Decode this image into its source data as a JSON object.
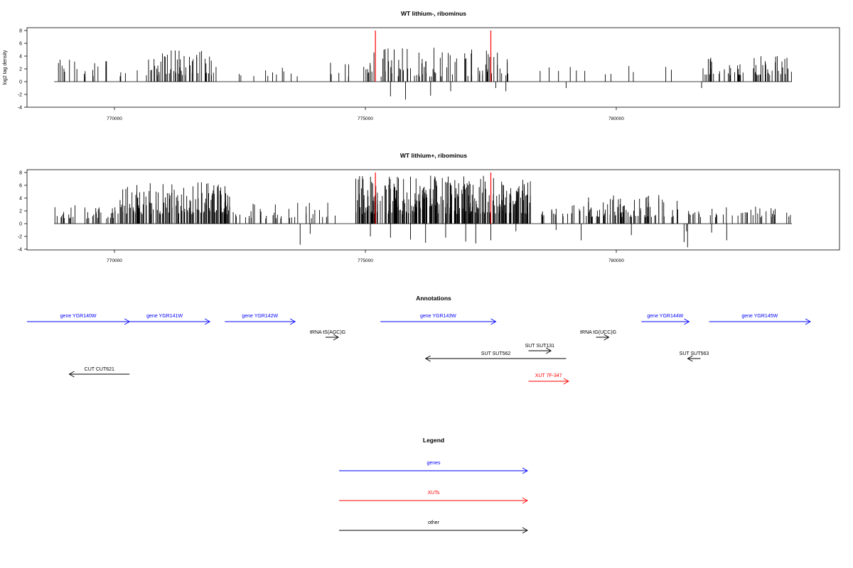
{
  "colors": {
    "gene": "#0000ff",
    "xut": "#ff0000",
    "other": "#000000",
    "marker": "#ff0000"
  },
  "chart_data": [
    {
      "type": "bar",
      "title": "WT lithium-, ribominus",
      "ylabel": "log2 tag density",
      "xlim": [
        767800,
        783700
      ],
      "ylim": [
        -4,
        8
      ],
      "yticks": [
        -4,
        -2,
        0,
        2,
        4,
        6,
        8
      ],
      "xticks": [
        770000,
        775000,
        780000
      ],
      "xtick_labels": [
        "770000",
        "775000",
        "780000"
      ],
      "markers": [
        775200,
        777500
      ],
      "seed": 7,
      "segments": [
        {
          "start": 768800,
          "end": 770500,
          "n": 22,
          "min": 0.8,
          "max": 3.5
        },
        {
          "start": 770600,
          "end": 772000,
          "n": 55,
          "min": 1.0,
          "max": 4.9
        },
        {
          "start": 772000,
          "end": 773800,
          "n": 12,
          "min": 0.8,
          "max": 3.0
        },
        {
          "start": 774300,
          "end": 775000,
          "n": 7,
          "min": 0.8,
          "max": 3.0
        },
        {
          "start": 775000,
          "end": 777900,
          "n": 90,
          "min": 0.8,
          "max": 5.5
        },
        {
          "start": 778300,
          "end": 779900,
          "n": 8,
          "min": 1.0,
          "max": 3.2
        },
        {
          "start": 780100,
          "end": 781300,
          "n": 4,
          "min": 1.5,
          "max": 3.5
        },
        {
          "start": 781700,
          "end": 783500,
          "n": 60,
          "min": 1.0,
          "max": 4.0
        }
      ],
      "negatives": [
        {
          "x": 775500,
          "y": -2.3
        },
        {
          "x": 775800,
          "y": -2.8
        },
        {
          "x": 776300,
          "y": -2.2
        },
        {
          "x": 776700,
          "y": -1.5
        },
        {
          "x": 777600,
          "y": -1.0
        },
        {
          "x": 777800,
          "y": -1.5
        },
        {
          "x": 779000,
          "y": -1.0
        },
        {
          "x": 781700,
          "y": -1.0
        }
      ]
    },
    {
      "type": "bar",
      "title": "WT lithium+, ribominus",
      "ylabel": "",
      "xlim": [
        767800,
        783700
      ],
      "ylim": [
        -4,
        8
      ],
      "yticks": [
        -4,
        -2,
        0,
        2,
        4,
        6,
        8
      ],
      "xticks": [
        770000,
        775000,
        780000
      ],
      "xtick_labels": [
        "770000",
        "775000",
        "780000"
      ],
      "markers": [
        775200,
        777500
      ],
      "seed": 13,
      "segments": [
        {
          "start": 768800,
          "end": 770000,
          "n": 35,
          "min": 0.8,
          "max": 3.0
        },
        {
          "start": 770000,
          "end": 772300,
          "n": 160,
          "min": 1.5,
          "max": 6.5
        },
        {
          "start": 772300,
          "end": 774400,
          "n": 40,
          "min": 0.8,
          "max": 3.5
        },
        {
          "start": 774800,
          "end": 778300,
          "n": 320,
          "min": 1.5,
          "max": 7.5
        },
        {
          "start": 778300,
          "end": 779400,
          "n": 20,
          "min": 1.0,
          "max": 3.0
        },
        {
          "start": 779400,
          "end": 781400,
          "n": 75,
          "min": 1.0,
          "max": 4.5
        },
        {
          "start": 781400,
          "end": 783500,
          "n": 40,
          "min": 1.0,
          "max": 2.8
        }
      ],
      "negatives": [
        {
          "x": 773700,
          "y": -3.3
        },
        {
          "x": 773900,
          "y": -1.6
        },
        {
          "x": 775100,
          "y": -2.0
        },
        {
          "x": 775500,
          "y": -2.2
        },
        {
          "x": 775900,
          "y": -2.5
        },
        {
          "x": 776200,
          "y": -3.0
        },
        {
          "x": 776600,
          "y": -2.2
        },
        {
          "x": 777000,
          "y": -2.8
        },
        {
          "x": 777200,
          "y": -3.1
        },
        {
          "x": 777500,
          "y": -2.6
        },
        {
          "x": 778000,
          "y": -1.2
        },
        {
          "x": 778800,
          "y": -1.0
        },
        {
          "x": 779300,
          "y": -2.6
        },
        {
          "x": 780300,
          "y": -1.8
        },
        {
          "x": 781400,
          "y": -1.2
        },
        {
          "x": 781350,
          "y": -2.9
        },
        {
          "x": 781420,
          "y": -3.7
        },
        {
          "x": 781900,
          "y": -1.4
        },
        {
          "x": 782200,
          "y": -2.6
        }
      ]
    }
  ],
  "annotations": {
    "title": "Annotations",
    "xlim": [
      767800,
      783700
    ],
    "items": [
      {
        "label": "gene YGR140W",
        "start": 767800,
        "end": 770300,
        "dir": "+",
        "row": 1,
        "type": "gene"
      },
      {
        "label": "gene YGR141W",
        "start": 770100,
        "end": 771900,
        "dir": "+",
        "row": 1,
        "type": "gene"
      },
      {
        "label": "gene YGR142W",
        "start": 772200,
        "end": 773600,
        "dir": "+",
        "row": 1,
        "type": "gene"
      },
      {
        "label": "tRNA tS(AGC)G",
        "start": 774220,
        "end": 774450,
        "dir": "+",
        "row": 2,
        "type": "other"
      },
      {
        "label": "gene YGR143W",
        "start": 775300,
        "end": 777600,
        "dir": "+",
        "row": 1,
        "type": "gene"
      },
      {
        "label": "SUT SUT562",
        "start": 776200,
        "end": 779000,
        "dir": "-",
        "row": 3,
        "type": "other"
      },
      {
        "label": "SUT SUT131",
        "start": 778250,
        "end": 778700,
        "dir": "+",
        "row": 4,
        "type": "other"
      },
      {
        "label": "XUT 7F-347",
        "start": 778250,
        "end": 779050,
        "dir": "+",
        "row": 5,
        "type": "xut"
      },
      {
        "label": "tRNA tG(UCC)G",
        "start": 779600,
        "end": 779850,
        "dir": "+",
        "row": 2,
        "type": "other"
      },
      {
        "label": "gene YGR144W",
        "start": 780500,
        "end": 781450,
        "dir": "+",
        "row": 1,
        "type": "gene"
      },
      {
        "label": "gene YGR145W",
        "start": 781850,
        "end": 783900,
        "dir": "+",
        "row": 1,
        "type": "gene"
      },
      {
        "label": "SUT SUT563",
        "start": 781500,
        "end": 781600,
        "dir": "-",
        "row": 3,
        "type": "other"
      },
      {
        "label": "CUT CUT621",
        "start": 769100,
        "end": 770300,
        "dir": "-",
        "row": 6,
        "type": "other"
      }
    ]
  },
  "legend": {
    "title": "Legend",
    "items": [
      {
        "label": "genes",
        "type": "gene"
      },
      {
        "label": "XUTs",
        "type": "xut"
      },
      {
        "label": "other",
        "type": "other"
      }
    ]
  }
}
